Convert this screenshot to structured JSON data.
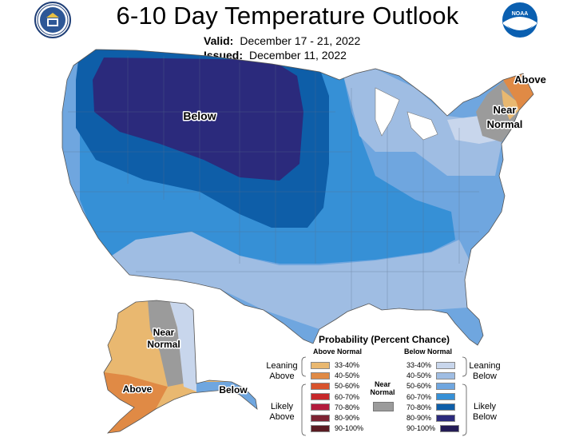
{
  "header": {
    "title": "6-10 Day Temperature Outlook",
    "valid_label": "Valid:",
    "valid_value": "December 17 - 21, 2022",
    "issued_label": "Issued:",
    "issued_value": "December 11, 2022",
    "noaa_text": "NOAA"
  },
  "map_labels": {
    "below_main": "Below",
    "above_ne": "Above",
    "near_ne_1": "Near",
    "near_ne_2": "Normal",
    "ak_near_1": "Near",
    "ak_near_2": "Normal",
    "ak_above": "Above",
    "ak_below": "Below"
  },
  "legend": {
    "title": "Probability (Percent Chance)",
    "above_header": "Above Normal",
    "below_header": "Below Normal",
    "near_label_1": "Near",
    "near_label_2": "Normal",
    "leaning_above_1": "Leaning",
    "leaning_above_2": "Above",
    "likely_above_1": "Likely",
    "likely_above_2": "Above",
    "leaning_below_1": "Leaning",
    "leaning_below_2": "Below",
    "likely_below_1": "Likely",
    "likely_below_2": "Below",
    "above": [
      {
        "range": "33-40%",
        "color": "#e9b870"
      },
      {
        "range": "40-50%",
        "color": "#e08a45"
      },
      {
        "range": "50-60%",
        "color": "#d8532d"
      },
      {
        "range": "60-70%",
        "color": "#c7282a"
      },
      {
        "range": "70-80%",
        "color": "#b31b3c"
      },
      {
        "range": "80-90%",
        "color": "#7d2333"
      },
      {
        "range": "90-100%",
        "color": "#5a1b22"
      }
    ],
    "below": [
      {
        "range": "33-40%",
        "color": "#c8d6ec"
      },
      {
        "range": "40-50%",
        "color": "#9fbde3"
      },
      {
        "range": "50-60%",
        "color": "#6fa6df"
      },
      {
        "range": "60-70%",
        "color": "#3690d6"
      },
      {
        "range": "70-80%",
        "color": "#0e5ea8"
      },
      {
        "range": "80-90%",
        "color": "#2b2a7c"
      },
      {
        "range": "90-100%",
        "color": "#241c55"
      }
    ],
    "near_color": "#9b9b9b"
  }
}
